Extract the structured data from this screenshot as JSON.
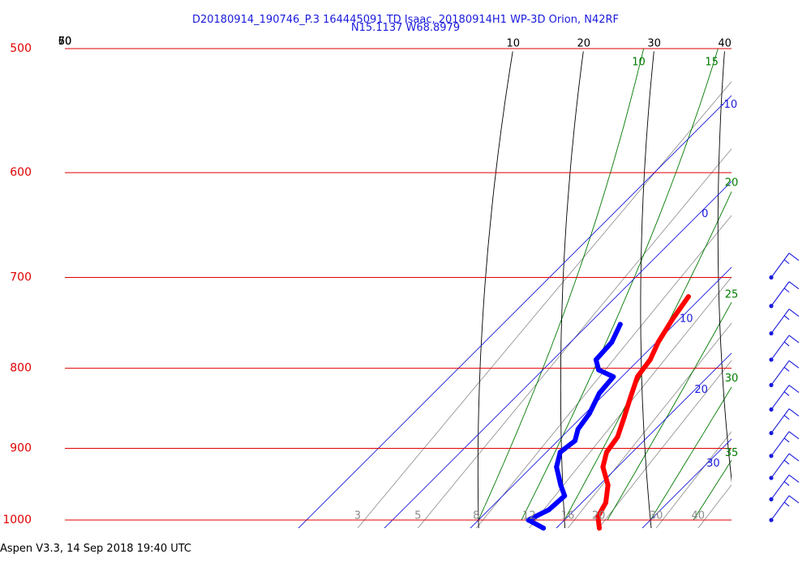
{
  "header": {
    "title_line1": "D20180914_190746_P.3 164445091 TD Isaac, 20180914H1 WP-3D Orion, N42RF",
    "title_line2": "N15.1137 W68.8979"
  },
  "footer": {
    "text": "Aspen V3.3, 14 Sep 2018  19:40 UTC"
  },
  "chart_data": {
    "type": "skew-t",
    "pressure_levels": [
      500,
      600,
      700,
      800,
      900,
      1000
    ],
    "ylim": [
      1000,
      500
    ],
    "pressure_scale": "log",
    "isotherms": [
      -10,
      0,
      10,
      20,
      30
    ],
    "dry_adiabats": [
      10,
      20,
      30,
      40,
      50,
      60,
      70
    ],
    "moist_adiabats": [
      10,
      15,
      20,
      25,
      30,
      35
    ],
    "mixing_ratio_lines": [
      3,
      5,
      8,
      12,
      16,
      20,
      30,
      40
    ],
    "colors": {
      "isobar": "#e00000",
      "isotherm": "#1a1adc",
      "dry_adiabat": "#000000",
      "moist_adiabat": "#007a00",
      "mixing_ratio": "#8a8a8a",
      "temperature": "#ff0000",
      "dewpoint": "#0000ff",
      "wind": "#1a1adc"
    },
    "series": [
      {
        "name": "temperature",
        "color": "#ff0000",
        "points": [
          {
            "p": 720,
            "t": 8.4
          },
          {
            "p": 745,
            "t": 9.2
          },
          {
            "p": 770,
            "t": 10.2
          },
          {
            "p": 790,
            "t": 11.3
          },
          {
            "p": 810,
            "t": 11.8
          },
          {
            "p": 835,
            "t": 13.4
          },
          {
            "p": 860,
            "t": 15.0
          },
          {
            "p": 885,
            "t": 16.5
          },
          {
            "p": 905,
            "t": 17.0
          },
          {
            "p": 925,
            "t": 18.3
          },
          {
            "p": 950,
            "t": 21.0
          },
          {
            "p": 975,
            "t": 22.8
          },
          {
            "p": 995,
            "t": 23.5
          },
          {
            "p": 1012,
            "t": 25.0
          }
        ]
      },
      {
        "name": "dewpoint",
        "color": "#0000ff",
        "points": [
          {
            "p": 750,
            "t": 3.7
          },
          {
            "p": 770,
            "t": 4.8
          },
          {
            "p": 790,
            "t": 5.0
          },
          {
            "p": 802,
            "t": 6.5
          },
          {
            "p": 810,
            "t": 9.0
          },
          {
            "p": 830,
            "t": 9.3
          },
          {
            "p": 855,
            "t": 10.5
          },
          {
            "p": 875,
            "t": 11.0
          },
          {
            "p": 890,
            "t": 12.0
          },
          {
            "p": 905,
            "t": 11.6
          },
          {
            "p": 925,
            "t": 12.9
          },
          {
            "p": 950,
            "t": 15.5
          },
          {
            "p": 965,
            "t": 17.2
          },
          {
            "p": 985,
            "t": 17.0
          },
          {
            "p": 1000,
            "t": 15.8
          },
          {
            "p": 1012,
            "t": 18.5
          }
        ]
      }
    ],
    "wind_barbs": [
      {
        "p": 700,
        "speed_kt": 15
      },
      {
        "p": 730,
        "speed_kt": 15
      },
      {
        "p": 760,
        "speed_kt": 15
      },
      {
        "p": 790,
        "speed_kt": 15
      },
      {
        "p": 820,
        "speed_kt": 15
      },
      {
        "p": 850,
        "speed_kt": 15
      },
      {
        "p": 880,
        "speed_kt": 15
      },
      {
        "p": 910,
        "speed_kt": 15
      },
      {
        "p": 940,
        "speed_kt": 15
      },
      {
        "p": 970,
        "speed_kt": 15
      },
      {
        "p": 1000,
        "speed_kt": 15
      }
    ]
  }
}
